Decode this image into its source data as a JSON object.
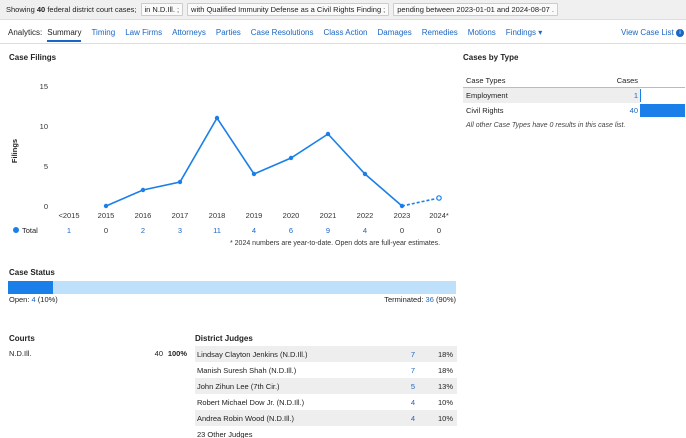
{
  "filters": {
    "prefix": "Showing",
    "count": "40",
    "suffix": "federal district court cases;",
    "chips": [
      "in N.D.Ill.",
      "with Qualified Immunity Defense as a Civil Rights Finding",
      "pending between 2023-01-01 and 2024-08-07"
    ]
  },
  "tabs": {
    "label": "Analytics:",
    "items": [
      "Summary",
      "Timing",
      "Law Firms",
      "Attorneys",
      "Parties",
      "Case Resolutions",
      "Class Action",
      "Damages",
      "Remedies",
      "Motions",
      "Findings ▾"
    ],
    "active": "Summary",
    "view_case_list": "View Case List"
  },
  "case_filings": {
    "title": "Case Filings",
    "total_label": "Total",
    "footnote": "* 2024 numbers are year-to-date. Open dots are full-year estimates.",
    "totals": [
      "1",
      "0",
      "2",
      "3",
      "11",
      "4",
      "6",
      "9",
      "4",
      "0",
      "0"
    ]
  },
  "chart_data": {
    "type": "line",
    "title": "Case Filings",
    "ylabel": "Filings",
    "xlabel": "",
    "categories": [
      "<2015",
      "2015",
      "2016",
      "2017",
      "2018",
      "2019",
      "2020",
      "2021",
      "2022",
      "2023",
      "2024*"
    ],
    "series": [
      {
        "name": "Total",
        "values": [
          null,
          0,
          2,
          3,
          11,
          4,
          6,
          9,
          4,
          0,
          null
        ]
      }
    ],
    "estimate": {
      "from": "2023",
      "to": "2024*",
      "values": [
        0,
        1
      ]
    },
    "ylim": [
      0,
      15
    ],
    "yticks": [
      0,
      5,
      10,
      15
    ],
    "grid": false,
    "color": "#1a7fe8"
  },
  "cases_by_type": {
    "title": "Cases by Type",
    "header_type": "Case Types",
    "header_cases": "Cases",
    "rows": [
      {
        "name": "Employment",
        "count": "1",
        "value": 1
      },
      {
        "name": "Civil Rights",
        "count": "40",
        "value": 40
      }
    ],
    "max": 40,
    "note": "All other Case Types have 0 results in this case list."
  },
  "case_status": {
    "title": "Case Status",
    "open_label": "Open:",
    "open_count": "4",
    "open_pct": "(10%)",
    "open_fraction": 0.1,
    "terminated_label": "Terminated:",
    "terminated_count": "36",
    "terminated_pct": "(90%)"
  },
  "courts": {
    "title": "Courts",
    "rows": [
      {
        "name": "N.D.Ill.",
        "count": "40",
        "pct": "100%"
      }
    ]
  },
  "judges": {
    "title": "District Judges",
    "rows": [
      {
        "name": "Lindsay Clayton Jenkins (N.D.Ill.)",
        "count": "7",
        "pct": "18%"
      },
      {
        "name": "Manish Suresh Shah (N.D.Ill.)",
        "count": "7",
        "pct": "18%"
      },
      {
        "name": "John Zihun Lee (7th Cir.)",
        "count": "5",
        "pct": "13%"
      },
      {
        "name": "Robert Michael Dow Jr. (N.D.Ill.)",
        "count": "4",
        "pct": "10%"
      },
      {
        "name": "Andrea Robin Wood (N.D.Ill.)",
        "count": "4",
        "pct": "10%"
      }
    ],
    "other": "23 Other Judges"
  }
}
